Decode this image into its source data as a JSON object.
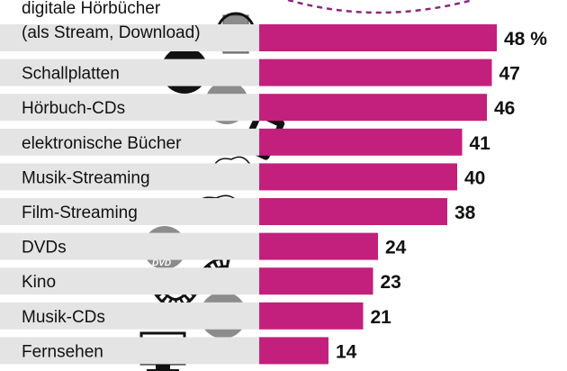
{
  "chart_data": {
    "type": "bar",
    "orientation": "horizontal",
    "unit": "%",
    "categories": [
      [
        "digitale Hörbücher",
        "(als Stream, Download)"
      ],
      [
        "Schallplatten"
      ],
      [
        "Hörbuch-CDs"
      ],
      [
        "elektronische Bücher"
      ],
      [
        "Musik-Streaming"
      ],
      [
        "Film-Streaming"
      ],
      [
        "DVDs"
      ],
      [
        "Kino"
      ],
      [
        "Musik-CDs"
      ],
      [
        "Fernsehen"
      ]
    ],
    "values": [
      48,
      47,
      46,
      41,
      40,
      38,
      24,
      23,
      21,
      14
    ],
    "value_labels": [
      "48 %",
      "47",
      "46",
      "41",
      "40",
      "38",
      "24",
      "23",
      "21",
      "14"
    ],
    "icons": [
      "headphones-book-icon",
      "vinyl-record-icon",
      "cd-icon",
      "ebook-reader-icon",
      "music-cloud-icon",
      "film-cloud-icon",
      "dvd-icon",
      "film-strip-icon",
      "music-cd-icon",
      "tv-icon"
    ],
    "xlim": [
      0,
      50
    ],
    "grid": false
  },
  "colors": {
    "bar": "#c2207c",
    "band": "#e4e4e4",
    "arc": "#8a2a7a",
    "icon_gray": "#8c8c8c"
  }
}
